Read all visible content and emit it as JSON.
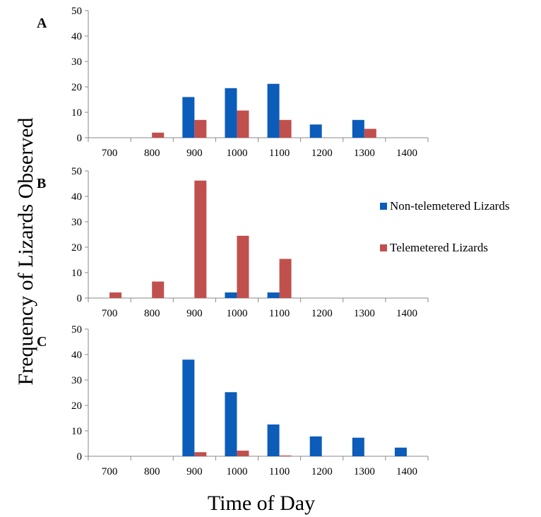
{
  "colors": {
    "non_telemetered": "#0c5cba",
    "telemetered": "#c0504d"
  },
  "shared": {
    "ylabel": "Frequency of Lizards Observed",
    "xlabel": "Time of Day"
  },
  "legend": {
    "position": "right",
    "entries": [
      "Non-telemetered Lizards",
      "Telemetered Lizards"
    ]
  },
  "chart_data": [
    {
      "type": "bar",
      "label": "A",
      "categories": [
        "700",
        "800",
        "900",
        "1000",
        "1100",
        "1200",
        "1300",
        "1400"
      ],
      "ylim": [
        0,
        50
      ],
      "yticks": [
        0,
        10,
        20,
        30,
        40,
        50
      ],
      "grid": false,
      "series": [
        {
          "name": "Non-telemetered Lizards",
          "values": [
            0,
            0,
            16,
            19.5,
            21.2,
            5.2,
            7,
            0
          ]
        },
        {
          "name": "Telemetered Lizards",
          "values": [
            0,
            2,
            7,
            10.7,
            7,
            0,
            3.5,
            0
          ]
        }
      ]
    },
    {
      "type": "bar",
      "label": "B",
      "categories": [
        "700",
        "800",
        "900",
        "1000",
        "1100",
        "1200",
        "1300",
        "1400"
      ],
      "ylim": [
        0,
        50
      ],
      "yticks": [
        0,
        10,
        20,
        30,
        40,
        50
      ],
      "grid": false,
      "series": [
        {
          "name": "Non-telemetered Lizards",
          "values": [
            0,
            0,
            0,
            2.2,
            2.2,
            0,
            0,
            0
          ]
        },
        {
          "name": "Telemetered Lizards",
          "values": [
            2.2,
            6.5,
            46.2,
            24.5,
            15.4,
            0,
            0,
            0
          ]
        }
      ]
    },
    {
      "type": "bar",
      "label": "C",
      "categories": [
        "700",
        "800",
        "900",
        "1000",
        "1100",
        "1200",
        "1300",
        "1400"
      ],
      "ylim": [
        0,
        50
      ],
      "yticks": [
        0,
        10,
        20,
        30,
        40,
        50
      ],
      "grid": false,
      "series": [
        {
          "name": "Non-telemetered Lizards",
          "values": [
            0,
            0,
            38,
            25.2,
            12.5,
            7.8,
            7.3,
            3.4
          ]
        },
        {
          "name": "Telemetered Lizards",
          "values": [
            0,
            0,
            1.6,
            2.2,
            0.3,
            0,
            0,
            0
          ]
        }
      ]
    }
  ]
}
